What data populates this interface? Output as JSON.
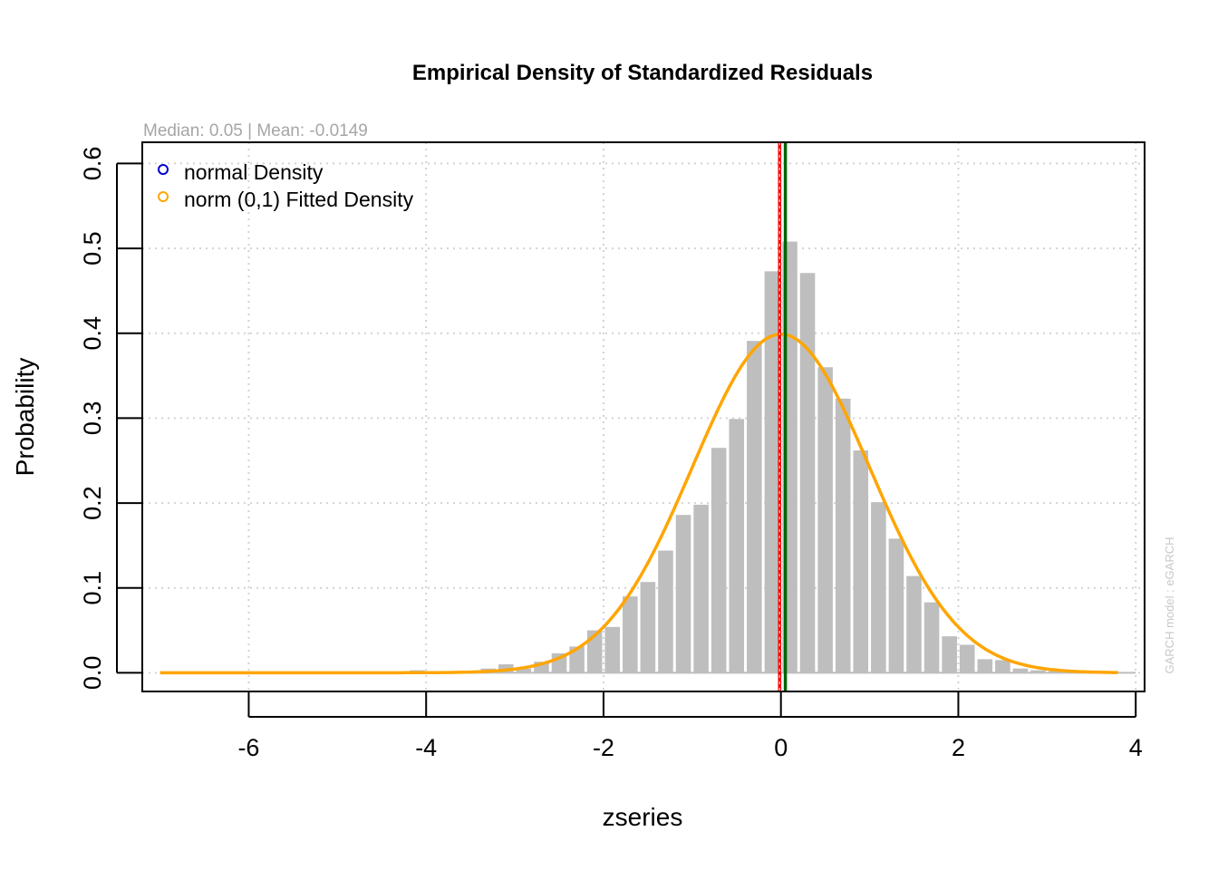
{
  "chart_data": {
    "type": "bar",
    "title": "Empirical Density of Standardized Residuals",
    "subtitle": "Median:  0.05 | Mean:  -0.0149",
    "xlabel": "zseries",
    "ylabel": "Probability",
    "side_label": "GARCH model :  eGARCH",
    "xlim": [
      -7.2,
      4.1
    ],
    "ylim": [
      -0.022,
      0.625
    ],
    "x_ticks": [
      -6,
      -4,
      -2,
      0,
      2,
      4
    ],
    "x_tick_labels": [
      "-6",
      "-4",
      "-2",
      "0",
      "2",
      "4"
    ],
    "y_ticks": [
      0.0,
      0.1,
      0.2,
      0.3,
      0.4,
      0.5,
      0.6
    ],
    "y_tick_labels": [
      "0.0",
      "0.1",
      "0.2",
      "0.3",
      "0.4",
      "0.5",
      "0.6"
    ],
    "grid": true,
    "legend_position": "top-left",
    "legend": [
      {
        "label": "normal Density",
        "color": "#0000cc"
      },
      {
        "label": "norm (0,1) Fitted Density",
        "color": "#ffa500"
      }
    ],
    "histogram": {
      "bin_width": 0.2,
      "color": "#bebebe",
      "bin_centers": [
        -4.1,
        -3.3,
        -3.1,
        -2.9,
        -2.7,
        -2.5,
        -2.3,
        -2.1,
        -1.9,
        -1.7,
        -1.5,
        -1.3,
        -1.1,
        -0.9,
        -0.7,
        -0.5,
        -0.3,
        -0.1,
        0.1,
        0.3,
        0.5,
        0.7,
        0.9,
        1.1,
        1.3,
        1.5,
        1.7,
        1.9,
        2.1,
        2.3,
        2.5,
        2.7,
        2.9,
        3.1
      ],
      "densities": [
        0.003,
        0.005,
        0.01,
        0.005,
        0.013,
        0.023,
        0.031,
        0.05,
        0.054,
        0.09,
        0.107,
        0.144,
        0.186,
        0.198,
        0.265,
        0.299,
        0.391,
        0.473,
        0.508,
        0.471,
        0.36,
        0.323,
        0.262,
        0.201,
        0.158,
        0.114,
        0.083,
        0.043,
        0.033,
        0.016,
        0.015,
        0.005,
        0.003,
        0.002
      ]
    },
    "fitted_density": {
      "name": "norm (0,1) Fitted Density",
      "mean": 0,
      "sd": 1,
      "x_range": [
        -7,
        3.8
      ],
      "color": "#ffa500"
    },
    "vertical_lines": [
      {
        "x": -0.0149,
        "color": "#ff0000",
        "label": "mean"
      },
      {
        "x": 0.05,
        "color": "#006400",
        "label": "median"
      }
    ],
    "baseline_color": "#bebebe"
  }
}
